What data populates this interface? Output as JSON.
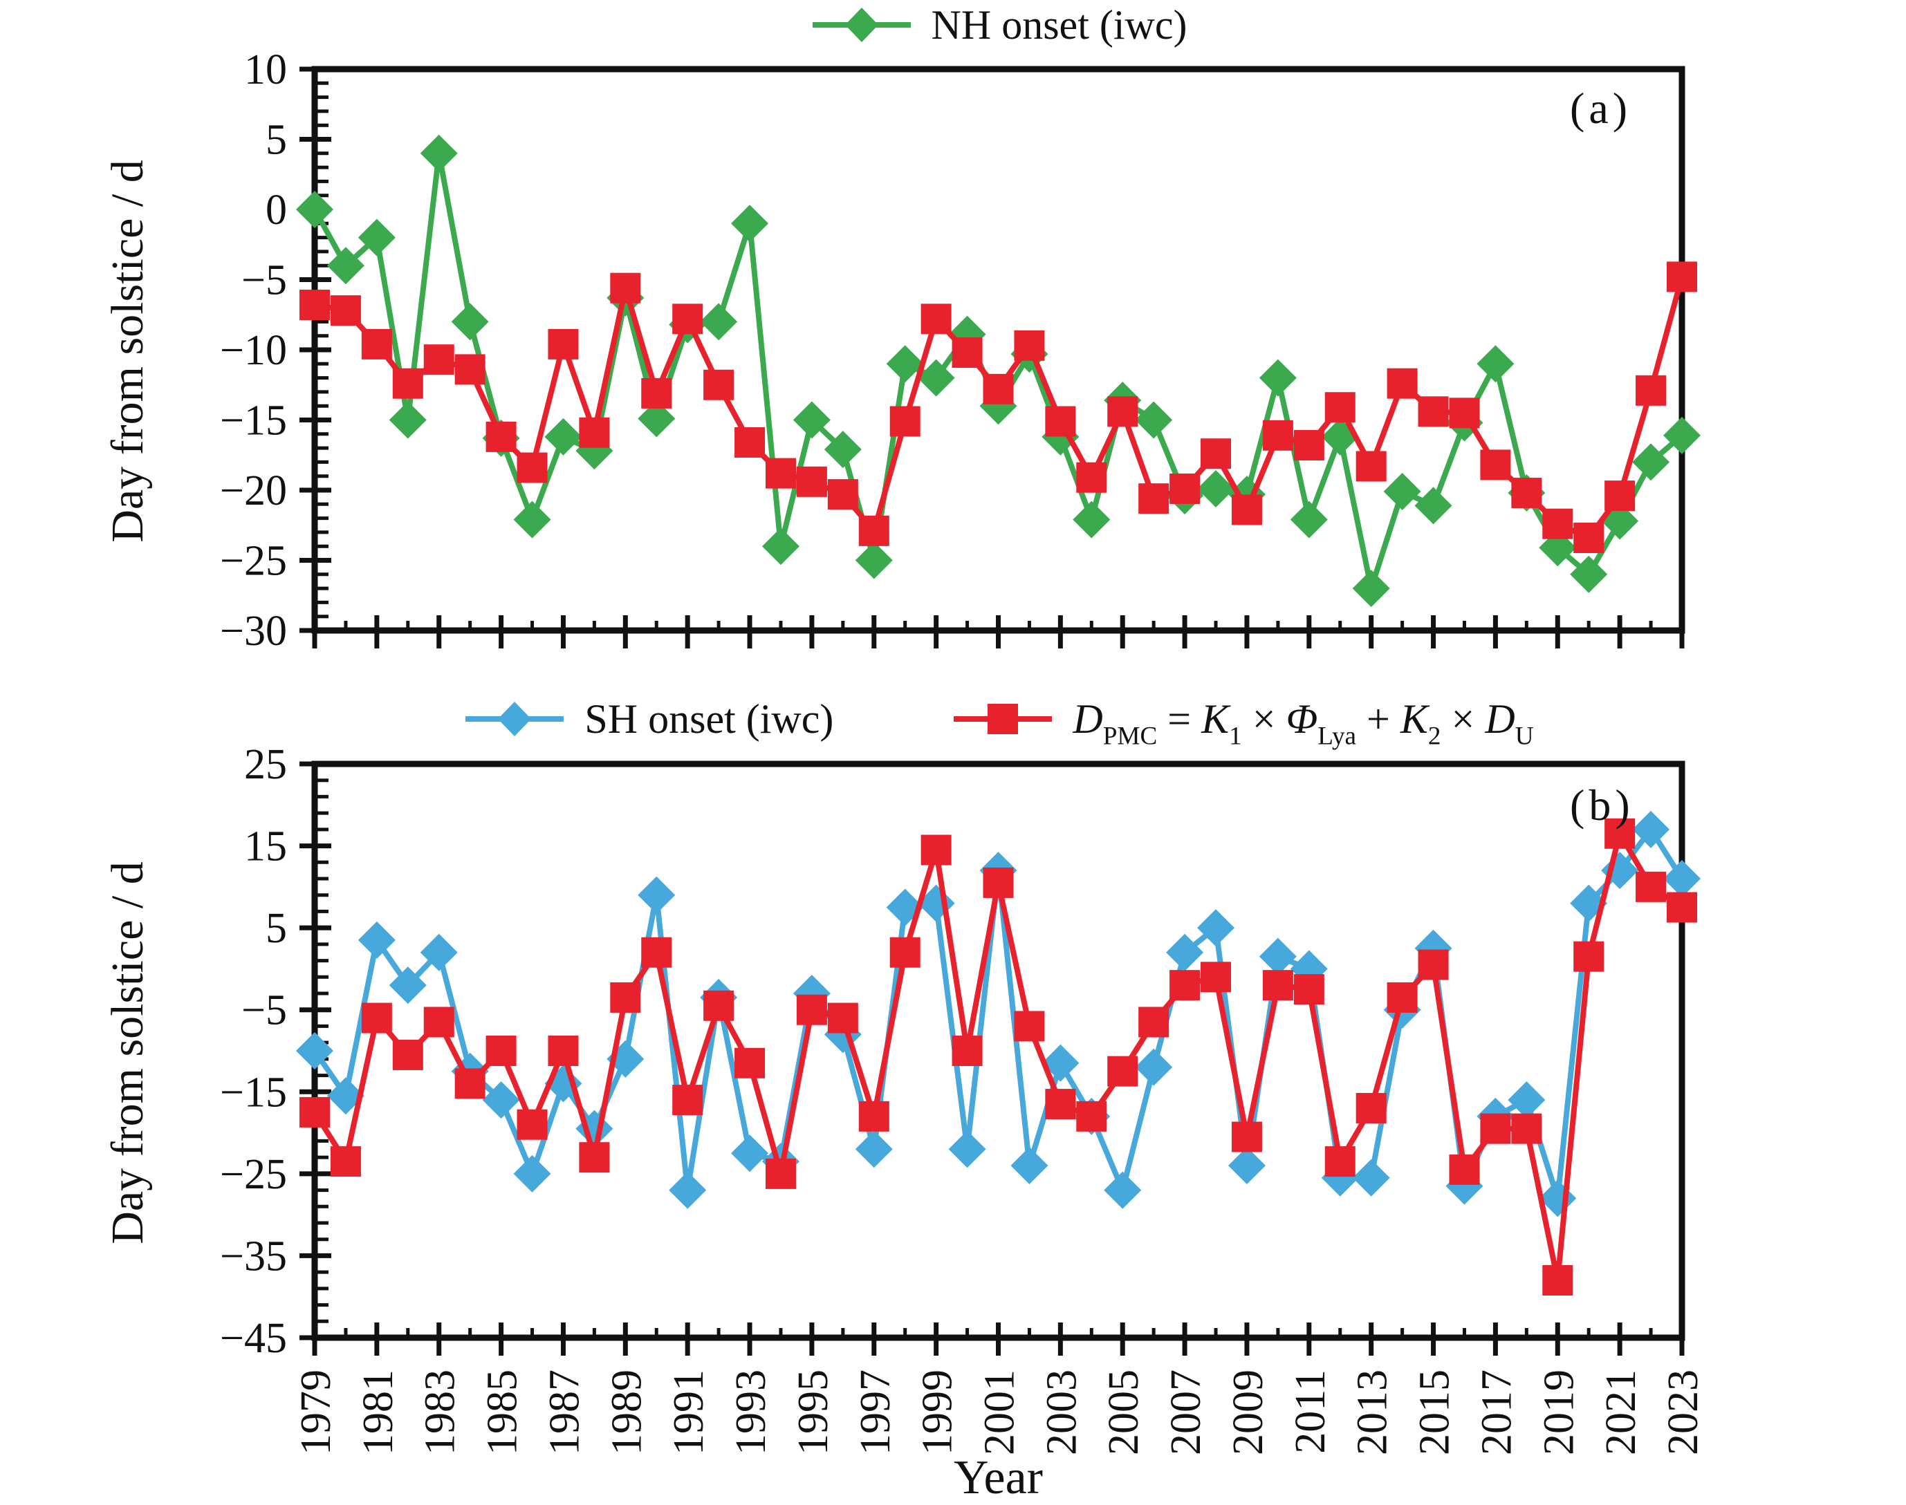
{
  "figure": {
    "xlabel": "Year",
    "background": "#ffffff"
  },
  "colors": {
    "green": "#3BAA4E",
    "red": "#E8222C",
    "blue": "#47A9DB",
    "axis": "#111111"
  },
  "chart_data": [
    {
      "type": "line",
      "panel_label": "(a)",
      "ylabel": "Day from solstice / d",
      "ylim": [
        -30,
        10
      ],
      "yticks": [
        10,
        5,
        0,
        -5,
        -10,
        -15,
        -20,
        -25,
        -30
      ],
      "ytick_minor_step": 1,
      "x_years": [
        1979,
        1980,
        1981,
        1982,
        1983,
        1984,
        1985,
        1986,
        1987,
        1988,
        1989,
        1990,
        1991,
        1992,
        1993,
        1994,
        1995,
        1996,
        1997,
        1998,
        1999,
        2000,
        2001,
        2002,
        2003,
        2004,
        2005,
        2006,
        2007,
        2008,
        2009,
        2010,
        2011,
        2012,
        2013,
        2014,
        2015,
        2016,
        2017,
        2018,
        2019,
        2020,
        2021,
        2022,
        2023
      ],
      "xtick_labels": [],
      "grid": false,
      "legend": [
        {
          "marker": "diamond",
          "color_key": "green",
          "label": "NH onset (iwc)"
        }
      ],
      "series": [
        {
          "name": "NH onset (iwc)",
          "marker": "diamond",
          "color_key": "green",
          "values": [
            0,
            -4,
            -2,
            -15,
            4,
            -8,
            -16.3,
            -22.1,
            -16.2,
            -17.2,
            -6.3,
            -14.9,
            -8.2,
            -8,
            -1,
            -24,
            -15,
            -17.1,
            -25,
            -11,
            -12,
            -8.9,
            -14,
            -10.3,
            -16.2,
            -22.1,
            -13.6,
            -15,
            -20.4,
            -19.9,
            -20.3,
            -12,
            -22.1,
            -16.2,
            -27,
            -20.1,
            -21.1,
            -15.2,
            -11,
            -20.2,
            -24.1,
            -26,
            -22.2,
            -18,
            -16.1
          ]
        },
        {
          "name": "D_PMC model",
          "marker": "square",
          "color_key": "red",
          "values": [
            -6.8,
            -7.2,
            -9.6,
            -12.4,
            -10.7,
            -11.4,
            -16.2,
            -18.4,
            -9.6,
            -15.9,
            -5.6,
            -13.1,
            -7.8,
            -12.5,
            -16.6,
            -18.8,
            -19.4,
            -20.3,
            -22.9,
            -15.1,
            -7.8,
            -10.2,
            -12.8,
            -9.7,
            -15.1,
            -19.1,
            -14.4,
            -20.6,
            -19.9,
            -17.4,
            -21.4,
            -16.1,
            -16.8,
            -14.1,
            -18.3,
            -12.4,
            -14.4,
            -14.5,
            -18.2,
            -20.2,
            -22.4,
            -23.4,
            -20.4,
            -12.9,
            -4.8
          ]
        }
      ]
    },
    {
      "type": "line",
      "panel_label": "(b)",
      "ylabel": "Day from solstice / d",
      "ylim": [
        -45,
        25
      ],
      "yticks": [
        25,
        15,
        5,
        -5,
        -15,
        -25,
        -35,
        -45
      ],
      "ytick_minor_step": 2,
      "x_years": [
        1979,
        1980,
        1981,
        1982,
        1983,
        1984,
        1985,
        1986,
        1987,
        1988,
        1989,
        1990,
        1991,
        1992,
        1993,
        1994,
        1995,
        1996,
        1997,
        1998,
        1999,
        2000,
        2001,
        2002,
        2003,
        2004,
        2005,
        2006,
        2007,
        2008,
        2009,
        2010,
        2011,
        2012,
        2013,
        2014,
        2015,
        2016,
        2017,
        2018,
        2019,
        2020,
        2021,
        2022,
        2023
      ],
      "xtick_labels": [
        1979,
        1981,
        1983,
        1985,
        1987,
        1989,
        1991,
        1993,
        1995,
        1997,
        1999,
        2001,
        2003,
        2005,
        2007,
        2009,
        2011,
        2013,
        2015,
        2017,
        2019,
        2021,
        2023
      ],
      "grid": false,
      "legend": [
        {
          "marker": "diamond",
          "color_key": "blue",
          "label": "SH onset (iwc)"
        },
        {
          "marker": "square",
          "color_key": "red",
          "label": "D_PMC = K1 × Φ_Lya + K2 × D_U",
          "label_segments": [
            {
              "t": "D",
              "i": true
            },
            {
              "t": "PMC",
              "s": true
            },
            {
              "t": " = "
            },
            {
              "t": "K",
              "i": true
            },
            {
              "t": "1",
              "s": true
            },
            {
              "t": " × "
            },
            {
              "t": "Φ",
              "i": true
            },
            {
              "t": "Lya",
              "s": true
            },
            {
              "t": " + "
            },
            {
              "t": "K",
              "i": true
            },
            {
              "t": "2",
              "s": true
            },
            {
              "t": " × "
            },
            {
              "t": "D",
              "i": true
            },
            {
              "t": "U",
              "s": true
            }
          ]
        }
      ],
      "series": [
        {
          "name": "SH onset (iwc)",
          "marker": "diamond",
          "color_key": "blue",
          "values": [
            -10,
            -15.5,
            3.5,
            -2,
            2,
            -12.5,
            -16,
            -25,
            -14,
            -19.5,
            -11,
            9,
            -27,
            -3.5,
            -22.5,
            -23.5,
            -3,
            -8,
            -22,
            7.5,
            8,
            -22,
            12,
            -24,
            -11.5,
            -18,
            -27,
            -12,
            2,
            5,
            -24,
            1.5,
            0,
            -25.5,
            -25.5,
            -5,
            2.5,
            -26.5,
            -18,
            -16,
            -28,
            8,
            12,
            17,
            11
          ]
        },
        {
          "name": "D_PMC model",
          "marker": "square",
          "color_key": "red",
          "values": [
            -17.5,
            -23.5,
            -6,
            -10.5,
            -6.5,
            -14,
            -10,
            -19,
            -10,
            -23,
            -3.5,
            2,
            -16,
            -4.5,
            -11.5,
            -25,
            -5,
            -6,
            -18,
            2,
            14.5,
            -10,
            10.5,
            -7,
            -16.5,
            -18,
            -12.5,
            -6.5,
            -2,
            -1,
            -20.5,
            -2,
            -2.5,
            -23.5,
            -17,
            -3.5,
            0.5,
            -24.5,
            -19.5,
            -19.5,
            -38,
            1.5,
            16.5,
            10,
            7.5
          ]
        }
      ]
    }
  ]
}
